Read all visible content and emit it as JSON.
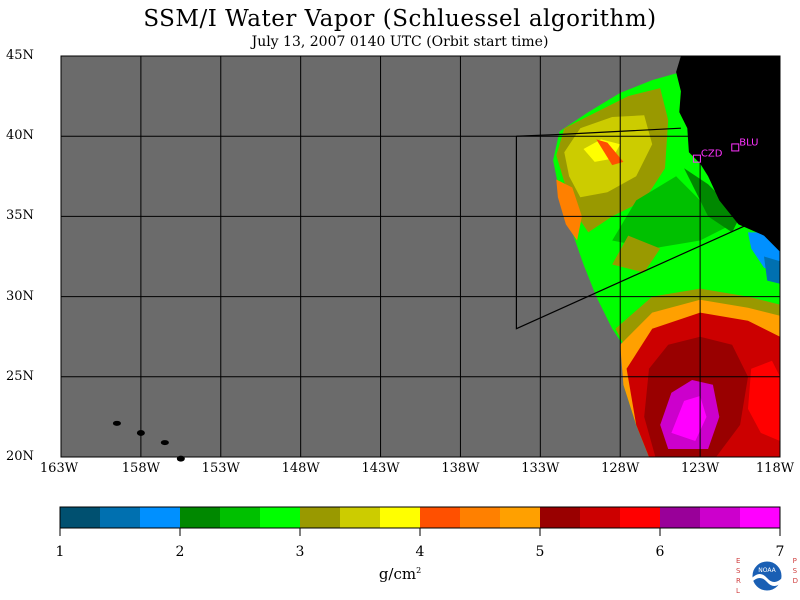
{
  "title": "SSM/I Water Vapor (Schluessel algorithm)",
  "subtitle": "July 13, 2007  0140 UTC  (Orbit start time)",
  "lat_labels": [
    "45N",
    "40N",
    "35N",
    "30N",
    "25N",
    "20N"
  ],
  "lon_labels": [
    "163W",
    "158W",
    "153W",
    "148W",
    "143W",
    "138W",
    "133W",
    "128W",
    "123W",
    "118W"
  ],
  "stations": [
    {
      "name": "CZD",
      "lat": 38.6,
      "lon": -123.2
    },
    {
      "name": "BLU",
      "lat": 39.3,
      "lon": -120.8
    }
  ],
  "colorbar": {
    "ticks": [
      "1",
      "2",
      "3",
      "4",
      "5",
      "6",
      "7"
    ],
    "colors": [
      "#005070",
      "#0070b0",
      "#0090ff",
      "#008800",
      "#00c000",
      "#00ff00",
      "#999900",
      "#cccc00",
      "#ffff00",
      "#ff5000",
      "#ff8000",
      "#ffa000",
      "#990000",
      "#cc0000",
      "#ff0000",
      "#990099",
      "#cc00cc",
      "#ff00ff"
    ],
    "units": "g/cm",
    "units_sup": "2"
  },
  "map": {
    "lat_range": [
      20,
      45
    ],
    "lon_range": [
      -163,
      -118
    ],
    "no_data_color": "#6b6b6b",
    "land_color": "#000000"
  },
  "logo": {
    "left_letters": [
      "E",
      "S",
      "R",
      "L"
    ],
    "right_letters": [
      "P",
      "S",
      "D"
    ],
    "text": "NOAA"
  }
}
